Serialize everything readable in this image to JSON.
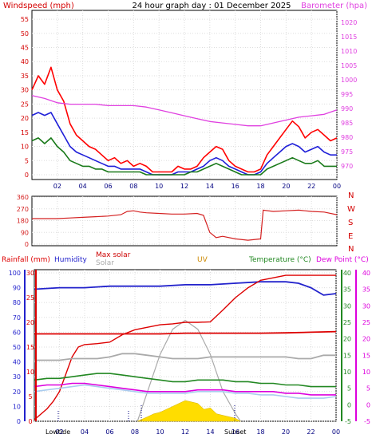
{
  "header": {
    "windspeed_label": "Windspeed (mph)",
    "title": "24 hour graph day : 01 December 2025",
    "barometer_label": "Barometer (hpa)"
  },
  "wind_dir_labels": [
    "N",
    "W",
    "S",
    "E",
    "N"
  ],
  "bottom_header": {
    "rainfall_label": "Rainfall (mm)",
    "humidity_label": "Humidity",
    "max_solar_label": "Max solar",
    "solar_label": "Solar",
    "uv_label": "UV",
    "temperature_label": "Temperature (°C)",
    "dewpoint_label": "Dew Point (°C)"
  },
  "bottom_footer": {
    "low_tide_label": "Lowtide",
    "sunset_label": "Sunset"
  },
  "colors": {
    "windspeed": "#d40000",
    "barometer": "#e040e0",
    "title": "#000000",
    "gust": "#ff0000",
    "avg_wind": "#1f1fd8",
    "wind_min": "#1a7a1a",
    "direction": "#d42020",
    "rainfall": "#dd0000",
    "humidity": "#2222cc",
    "max_solar": "#aaaaaa",
    "solar_fill": "#ffdd00",
    "uv": "#cc8800",
    "temperature": "#228822",
    "dewpoint": "#dd00dd",
    "apparent": "#aaccee",
    "indoor": "#aaaaaa"
  },
  "chart_data": [
    {
      "type": "line",
      "name": "wind-and-barometer",
      "x_ticks": [
        "02",
        "04",
        "06",
        "08",
        "10",
        "12",
        "14",
        "16",
        "18",
        "20",
        "22",
        "00"
      ],
      "y_left_ticks": [
        0,
        5,
        10,
        15,
        20,
        25,
        30,
        35,
        40,
        45,
        50,
        55
      ],
      "y_right_ticks": [
        970,
        975,
        980,
        985,
        990,
        995,
        1000,
        1005,
        1010,
        1015,
        1020
      ],
      "ylim_left": [
        0,
        57
      ],
      "ylim_right": [
        967,
        1023
      ],
      "xlim": [
        0,
        24
      ],
      "series": [
        {
          "key": "gust",
          "axis": "left",
          "x": [
            0,
            0.5,
            1,
            1.5,
            2,
            2.5,
            3,
            3.5,
            4,
            4.5,
            5,
            5.5,
            6,
            6.5,
            7,
            7.5,
            8,
            8.5,
            9,
            9.5,
            10,
            10.5,
            11,
            11.5,
            12,
            12.5,
            13,
            13.5,
            14,
            14.5,
            15,
            15.5,
            16,
            16.5,
            17,
            17.5,
            18,
            18.5,
            19,
            19.5,
            20,
            20.5,
            21,
            21.5,
            22,
            22.5,
            23,
            23.5,
            24
          ],
          "y": [
            30,
            35,
            32,
            38,
            30,
            26,
            18,
            14,
            12,
            10,
            9,
            7,
            5,
            6,
            4,
            5,
            3,
            4,
            3,
            1,
            1,
            1,
            1,
            3,
            2,
            2,
            3,
            6,
            8,
            10,
            9,
            5,
            3,
            2,
            1,
            1,
            2,
            7,
            10,
            13,
            16,
            19,
            17,
            13,
            15,
            16,
            14,
            12,
            13
          ]
        },
        {
          "key": "avg",
          "axis": "left",
          "x": [
            0,
            0.5,
            1,
            1.5,
            2,
            2.5,
            3,
            3.5,
            4,
            4.5,
            5,
            5.5,
            6,
            6.5,
            7,
            7.5,
            8,
            8.5,
            9,
            9.5,
            10,
            10.5,
            11,
            11.5,
            12,
            12.5,
            13,
            13.5,
            14,
            14.5,
            15,
            15.5,
            16,
            16.5,
            17,
            17.5,
            18,
            18.5,
            19,
            19.5,
            20,
            20.5,
            21,
            21.5,
            22,
            22.5,
            23,
            23.5,
            24
          ],
          "y": [
            21,
            22,
            21,
            22,
            18,
            14,
            10,
            8,
            7,
            6,
            5,
            4,
            3,
            3,
            2,
            2,
            2,
            2,
            1,
            0,
            0,
            0,
            0,
            1,
            1,
            1,
            2,
            3,
            5,
            6,
            5,
            3,
            2,
            1,
            0,
            0,
            1,
            4,
            6,
            8,
            10,
            11,
            10,
            8,
            9,
            10,
            8,
            7,
            7
          ]
        },
        {
          "key": "min",
          "axis": "left",
          "x": [
            0,
            0.5,
            1,
            1.5,
            2,
            2.5,
            3,
            3.5,
            4,
            4.5,
            5,
            5.5,
            6,
            6.5,
            7,
            7.5,
            8,
            8.5,
            9,
            9.5,
            10,
            10.5,
            11,
            11.5,
            12,
            12.5,
            13,
            13.5,
            14,
            14.5,
            15,
            15.5,
            16,
            16.5,
            17,
            17.5,
            18,
            18.5,
            19,
            19.5,
            20,
            20.5,
            21,
            21.5,
            22,
            22.5,
            23,
            23.5,
            24
          ],
          "y": [
            12,
            13,
            11,
            13,
            10,
            8,
            5,
            4,
            3,
            3,
            2,
            2,
            1,
            1,
            1,
            1,
            1,
            1,
            0,
            0,
            0,
            0,
            0,
            0,
            0,
            1,
            1,
            2,
            3,
            4,
            3,
            2,
            1,
            0,
            0,
            0,
            0,
            2,
            3,
            4,
            5,
            6,
            5,
            4,
            4,
            5,
            3,
            3,
            3
          ]
        },
        {
          "key": "barometer",
          "axis": "right",
          "x": [
            0,
            1,
            2,
            3,
            4,
            5,
            6,
            7,
            8,
            9,
            10,
            11,
            12,
            13,
            14,
            15,
            16,
            17,
            18,
            19,
            20,
            21,
            22,
            23,
            24
          ],
          "y": [
            994.5,
            993.5,
            992,
            991.5,
            991.5,
            991.5,
            991,
            991,
            991,
            990.5,
            989.5,
            988.5,
            987.5,
            986.5,
            985.5,
            985,
            984.5,
            984,
            984,
            985,
            986,
            987,
            987.5,
            988,
            989.5
          ]
        }
      ]
    },
    {
      "type": "line",
      "name": "wind-direction",
      "y_ticks": [
        0,
        90,
        180,
        270,
        360
      ],
      "ylim": [
        0,
        360
      ],
      "xlim": [
        0,
        24
      ],
      "series": [
        {
          "key": "direction",
          "x": [
            0,
            1,
            2,
            3,
            4,
            5,
            6,
            7,
            7.5,
            8,
            8.5,
            9,
            10,
            11,
            12,
            13,
            13.5,
            14,
            14.5,
            15,
            16,
            17,
            18,
            18.2,
            19,
            20,
            21,
            22,
            23,
            24
          ],
          "y": [
            195,
            195,
            195,
            200,
            205,
            210,
            215,
            225,
            250,
            255,
            245,
            240,
            235,
            230,
            230,
            235,
            220,
            90,
            50,
            60,
            40,
            30,
            40,
            260,
            250,
            255,
            260,
            250,
            245,
            225
          ]
        }
      ]
    },
    {
      "type": "line",
      "name": "rain-humidity-solar-temperature",
      "x_ticks": [
        "02",
        "04",
        "06",
        "08",
        "10",
        "12",
        "14",
        "16",
        "18",
        "20",
        "22",
        "00"
      ],
      "rain_ticks": [
        0,
        5,
        10,
        15,
        20,
        25,
        30
      ],
      "humidity_ticks": [
        0,
        10,
        20,
        30,
        40,
        50,
        60,
        70,
        80,
        90,
        100
      ],
      "temp_ticks": [
        -5,
        0,
        5,
        10,
        15,
        20,
        25,
        30,
        35,
        40
      ],
      "rain_lim": [
        0,
        30
      ],
      "humidity_lim": [
        0,
        100
      ],
      "temp_lim": [
        -5,
        40
      ],
      "xlim": [
        0,
        24
      ],
      "series": [
        {
          "key": "humidity",
          "axis": "humidity",
          "x": [
            0,
            2,
            4,
            6,
            8,
            10,
            12,
            14,
            16,
            18,
            20,
            21,
            22,
            23,
            24
          ],
          "y": [
            89,
            90,
            90,
            91,
            91,
            91,
            92,
            92,
            93,
            94,
            94,
            93,
            90,
            85,
            86
          ]
        },
        {
          "key": "rain_today",
          "axis": "rain",
          "x": [
            0,
            1,
            1.5,
            2,
            2.5,
            3,
            3.5,
            4,
            5,
            6,
            7,
            8,
            9,
            10,
            11,
            12,
            13,
            14,
            15,
            16,
            17,
            18,
            19,
            20,
            21,
            22,
            23,
            24
          ],
          "y": [
            0.3,
            2.5,
            4,
            6,
            9.5,
            13,
            15,
            15.5,
            15.7,
            16,
            17.5,
            18.5,
            19,
            19.5,
            19.7,
            20,
            20,
            20.1,
            22.5,
            25,
            27,
            28.5,
            29,
            29.5,
            29.5,
            29.5,
            29.5,
            29.5
          ]
        },
        {
          "key": "rain_rate",
          "axis": "temp",
          "x": [
            0,
            2,
            4,
            6,
            8,
            10,
            12,
            14,
            16,
            18,
            20,
            22,
            24
          ],
          "y": [
            21.5,
            21.5,
            21.5,
            21.5,
            21.5,
            21.5,
            21.7,
            21.7,
            21.7,
            21.7,
            21.8,
            22,
            22.2
          ]
        },
        {
          "key": "indoor",
          "axis": "temp",
          "x": [
            0,
            2,
            3,
            4,
            5,
            6,
            7,
            8,
            9,
            10,
            11,
            12,
            13,
            14,
            15,
            16,
            17,
            18,
            19,
            20,
            21,
            22,
            23,
            24
          ],
          "y": [
            13.5,
            13.5,
            14,
            14,
            14,
            14.5,
            15.5,
            15.5,
            15,
            14.5,
            14,
            14,
            14,
            14.5,
            14.5,
            14.5,
            14.5,
            14.5,
            14.5,
            14.5,
            14,
            14,
            15,
            15
          ]
        },
        {
          "key": "temperature",
          "axis": "temp",
          "x": [
            0,
            1,
            2,
            3,
            4,
            5,
            6,
            7,
            8,
            9,
            10,
            11,
            12,
            13,
            14,
            15,
            16,
            17,
            18,
            19,
            20,
            21,
            22,
            23,
            24
          ],
          "y": [
            7.5,
            8,
            8,
            8.5,
            9,
            9.5,
            9.5,
            9,
            8.5,
            8,
            7.5,
            7,
            7,
            7.5,
            7.5,
            7.5,
            7,
            7,
            6.5,
            6.5,
            6,
            6,
            5.5,
            5.5,
            5.5
          ]
        },
        {
          "key": "dewpoint",
          "axis": "temp",
          "x": [
            0,
            1,
            2,
            3,
            4,
            5,
            6,
            7,
            8,
            9,
            10,
            11,
            12,
            13,
            14,
            15,
            16,
            17,
            18,
            19,
            20,
            21,
            22,
            23,
            24
          ],
          "y": [
            5.5,
            6,
            6,
            6.5,
            6.5,
            6,
            5.5,
            5,
            4.5,
            4,
            4,
            4,
            4,
            4.5,
            4.5,
            4.5,
            4,
            4,
            4,
            4,
            3.5,
            3.5,
            3,
            3,
            3
          ]
        },
        {
          "key": "apparent",
          "axis": "temp",
          "x": [
            0,
            1,
            2,
            3,
            4,
            5,
            6,
            7,
            8,
            9,
            10,
            11,
            12,
            13,
            14,
            15,
            16,
            17,
            18,
            19,
            20,
            21,
            22,
            23,
            24
          ],
          "y": [
            4,
            4.5,
            5,
            5.5,
            6,
            5.5,
            5,
            4.5,
            4,
            3.5,
            3.5,
            3.5,
            3.5,
            4,
            4,
            4,
            3.5,
            3.5,
            3,
            3,
            2.5,
            2,
            2,
            2,
            2.5
          ]
        }
      ],
      "max_solar": {
        "x": [
          8.2,
          9,
          10,
          11,
          12,
          13,
          14,
          15,
          16,
          16.4
        ],
        "y": [
          0,
          20,
          45,
          62,
          68,
          62,
          45,
          20,
          5,
          0
        ]
      },
      "solar": {
        "x": [
          8.2,
          9,
          9.5,
          10,
          10.5,
          11,
          11.5,
          12,
          12.5,
          13,
          13.5,
          14,
          14.5,
          15,
          16,
          16.4
        ],
        "y": [
          0,
          3,
          5,
          6,
          8,
          10,
          12,
          14,
          13,
          12,
          8,
          9,
          5,
          4,
          2,
          0
        ]
      }
    }
  ]
}
